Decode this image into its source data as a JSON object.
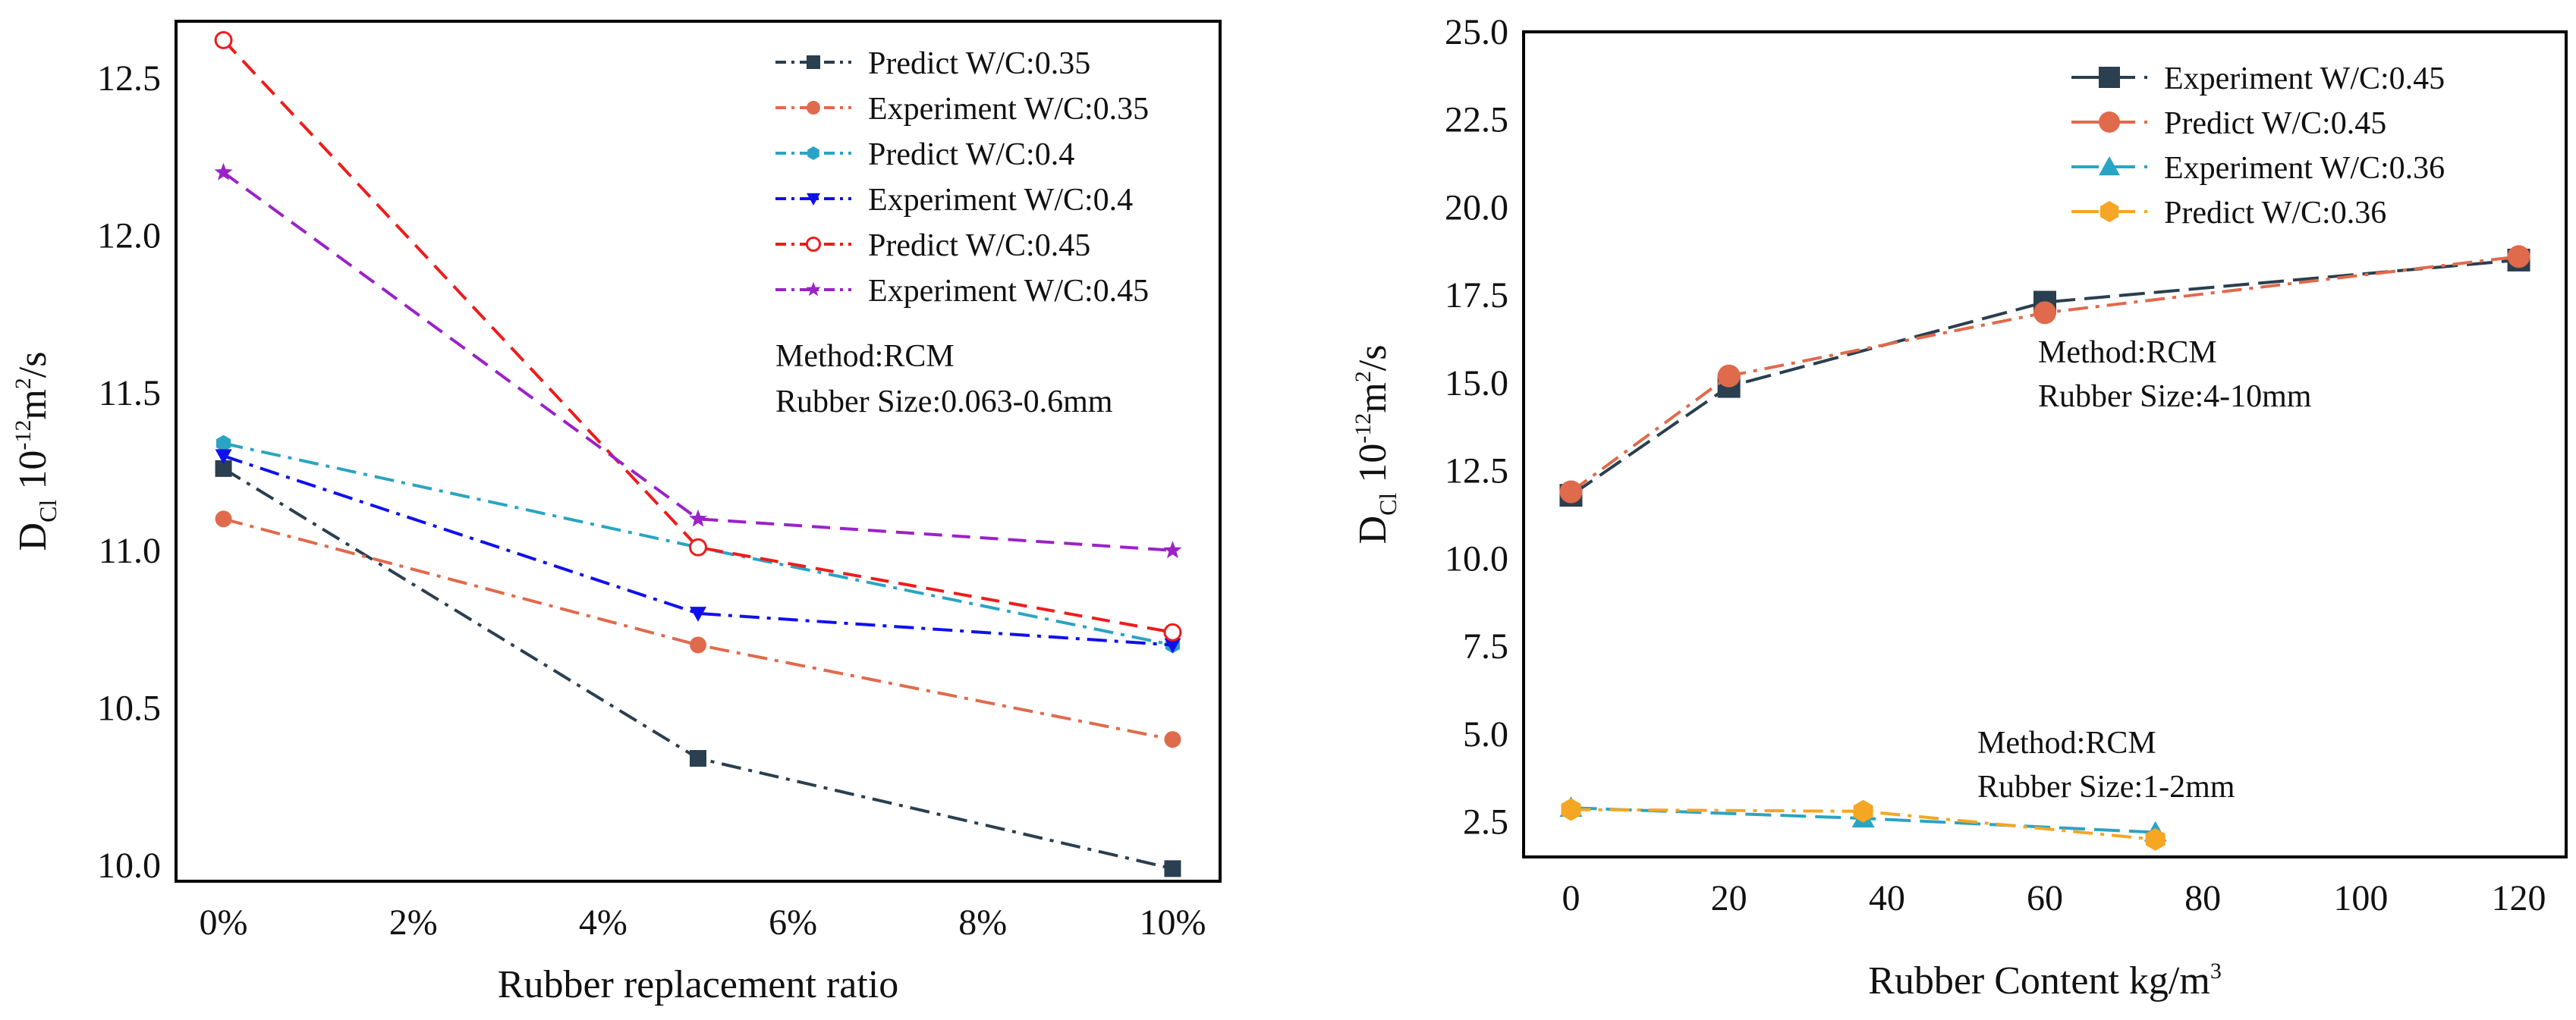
{
  "chart_data": [
    {
      "type": "line",
      "id": "left",
      "x": [
        0,
        5,
        10
      ],
      "x_tick_labels": [
        "0%",
        "2%",
        "4%",
        "6%",
        "8%",
        "10%"
      ],
      "x_ticks": [
        0,
        2,
        4,
        6,
        8,
        10
      ],
      "xlim": [
        -0.5,
        10.5
      ],
      "y_ticks": [
        10.0,
        10.5,
        11.0,
        11.5,
        12.0,
        12.5
      ],
      "y_tick_labels": [
        "10.0",
        "10.5",
        "11.0",
        "11.5",
        "12.0",
        "12.5"
      ],
      "ylim": [
        9.95,
        12.68
      ],
      "xlabel": "Rubber replacement ratio",
      "ylabel": {
        "base": "D",
        "sub": "Cl",
        "mid": " 10",
        "sup1": "-12",
        "unit": "m",
        "sup2": "2",
        "tail": "/s"
      },
      "legend_position": "top-right",
      "annotation": [
        "Method:RCM",
        "Rubber Size:0.063-0.6mm"
      ],
      "series": [
        {
          "name": "Predict W/C:0.35",
          "values": [
            11.26,
            10.34,
            9.99
          ],
          "color": "#2a3f4f",
          "dash": "dashdot",
          "marker": "square-filled"
        },
        {
          "name": "Experiment W/C:0.35",
          "values": [
            11.1,
            10.7,
            10.4
          ],
          "color": "#e06a4c",
          "dash": "dashdot",
          "marker": "circle-filled"
        },
        {
          "name": "Predict W/C:0.4",
          "values": [
            11.34,
            11.01,
            10.7
          ],
          "color": "#2aa4c4",
          "dash": "dashdot",
          "marker": "hexagon-filled"
        },
        {
          "name": "Experiment W/C:0.4",
          "values": [
            11.3,
            10.8,
            10.7
          ],
          "color": "#1010ee",
          "dash": "dashdot",
          "marker": "triangle-down-filled"
        },
        {
          "name": "Predict W/C:0.45",
          "values": [
            12.62,
            11.01,
            10.74
          ],
          "color": "#ee1c1c",
          "dash": "dashed",
          "marker": "circle-open"
        },
        {
          "name": "Experiment W/C:0.45",
          "values": [
            12.2,
            11.1,
            11.0
          ],
          "color": "#9a22c8",
          "dash": "dashed",
          "marker": "star"
        }
      ]
    },
    {
      "type": "line",
      "id": "right",
      "x_ticks": [
        0,
        20,
        40,
        60,
        80,
        100,
        120
      ],
      "x_tick_labels": [
        "0",
        "20",
        "40",
        "60",
        "80",
        "100",
        "120"
      ],
      "xlim": [
        -6,
        126
      ],
      "y_ticks": [
        2.5,
        5.0,
        7.5,
        10.0,
        12.5,
        15.0,
        17.5,
        20.0,
        22.5,
        25.0
      ],
      "y_tick_labels": [
        "2.5",
        "5.0",
        "7.5",
        "10.0",
        "12.5",
        "15.0",
        "17.5",
        "20.0",
        "22.5",
        "25.0"
      ],
      "ylim": [
        1.5,
        25.0
      ],
      "xlabel": {
        "base": "Rubber Content kg/m",
        "sup": "3"
      },
      "ylabel": {
        "base": "D",
        "sub": "Cl",
        "mid": " 10",
        "sup1": "-12",
        "unit": "m",
        "sup2": "2",
        "tail": "/s"
      },
      "legend_position": "top-right",
      "annotations": [
        [
          "Method:RCM",
          "Rubber Size:4-10mm"
        ],
        [
          "Method:RCM",
          "Rubber Size:1-2mm"
        ]
      ],
      "series": [
        {
          "name": "Experiment W/C:0.45",
          "x": [
            0,
            20,
            60,
            120
          ],
          "values": [
            11.8,
            14.9,
            17.3,
            18.5
          ],
          "color": "#2a3f4f",
          "dash": "longdash",
          "marker": "square-filled"
        },
        {
          "name": "Predict W/C:0.45",
          "x": [
            0,
            20,
            60,
            120
          ],
          "values": [
            11.9,
            15.2,
            17.0,
            18.6
          ],
          "color": "#e06a4c",
          "dash": "dashdot",
          "marker": "circle-filled"
        },
        {
          "name": "Experiment W/C:0.36",
          "x": [
            0,
            37,
            74
          ],
          "values": [
            2.9,
            2.6,
            2.2
          ],
          "color": "#2aa4c4",
          "dash": "longdash",
          "marker": "triangle-up-filled"
        },
        {
          "name": "Predict W/C:0.36",
          "x": [
            0,
            37,
            74
          ],
          "values": [
            2.85,
            2.8,
            2.0
          ],
          "color": "#f5a623",
          "dash": "dashdot",
          "marker": "hexagon-filled"
        }
      ]
    }
  ]
}
